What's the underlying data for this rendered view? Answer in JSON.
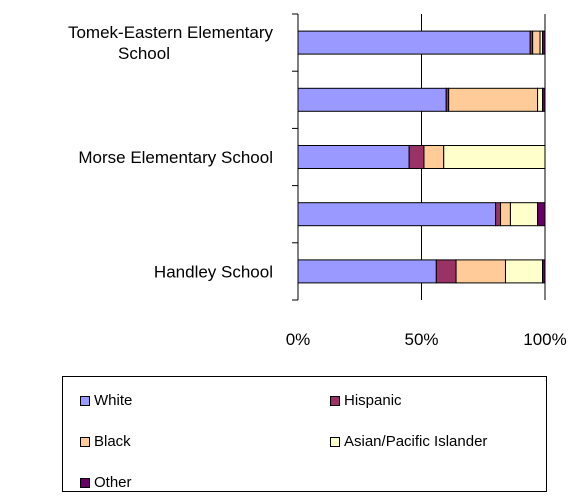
{
  "chart_data": {
    "type": "bar",
    "orientation": "horizontal",
    "stacked_percent": true,
    "categories": [
      "Tomek-Eastern Elementary School",
      "",
      "Morse Elementary School",
      "",
      "Handley School"
    ],
    "category_lines": [
      [
        "Tomek-Eastern Elementary",
        "School"
      ],
      [],
      [
        "Morse Elementary School"
      ],
      [],
      [
        "Handley School"
      ]
    ],
    "series": [
      {
        "name": "White",
        "color": "#9999ff",
        "values": [
          94,
          60,
          45,
          80,
          56
        ]
      },
      {
        "name": "Hispanic",
        "color": "#993366",
        "values": [
          1,
          1,
          6,
          2,
          8
        ]
      },
      {
        "name": "Black",
        "color": "#ffcc99",
        "values": [
          3,
          36,
          8,
          4,
          20
        ]
      },
      {
        "name": "Asian/Pacific Islander",
        "color": "#ffffcc",
        "values": [
          1,
          2,
          41,
          11,
          15
        ]
      },
      {
        "name": "Other",
        "color": "#660066",
        "values": [
          1,
          1,
          0,
          3,
          1
        ]
      }
    ],
    "x_ticks": [
      "0%",
      "50%",
      "100%"
    ],
    "xlim": [
      0,
      100
    ],
    "grid": "vertical major gridline at 50%",
    "legend": "bottom"
  }
}
